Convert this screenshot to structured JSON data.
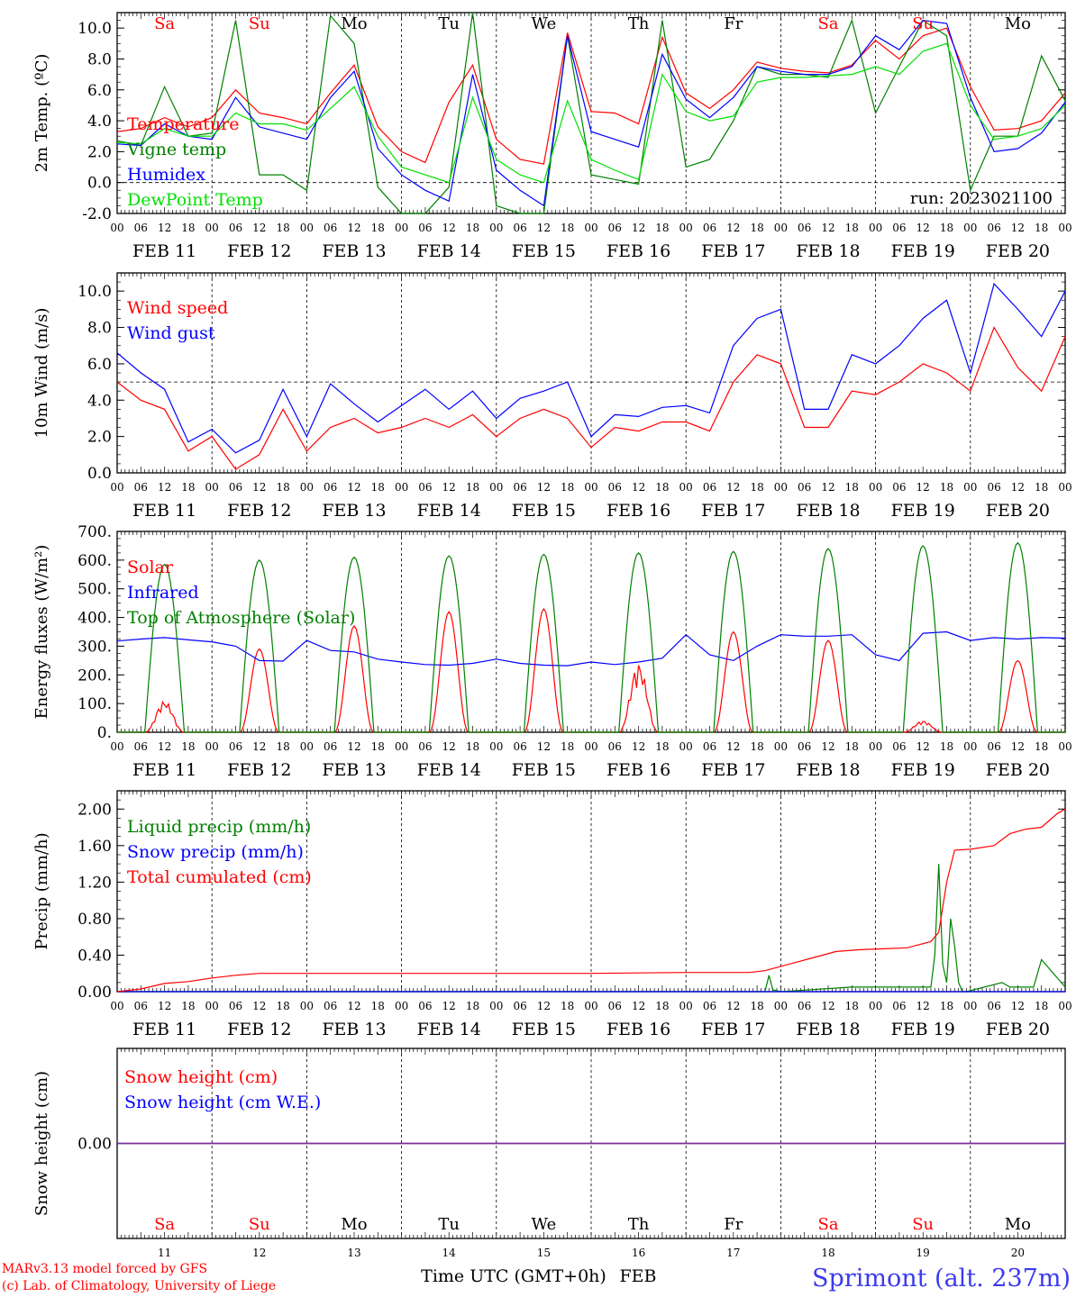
{
  "days": [
    "Sa",
    "Su",
    "Mo",
    "Tu",
    "We",
    "Th",
    "Fr",
    "Sa",
    "Su",
    "Mo"
  ],
  "day_colors": [
    "#ff0000",
    "#ff0000",
    "#000000",
    "#000000",
    "#000000",
    "#000000",
    "#000000",
    "#ff0000",
    "#ff0000",
    "#000000"
  ],
  "dates": [
    "FEB 11",
    "FEB 12",
    "FEB 13",
    "FEB 14",
    "FEB 15",
    "FEB 16",
    "FEB 17",
    "FEB 18",
    "FEB 19",
    "FEB 20"
  ],
  "hour_labels": [
    "00",
    "06",
    "12",
    "18"
  ],
  "bottom_day_numbers": [
    "11",
    "12",
    "13",
    "14",
    "15",
    "16",
    "17",
    "18",
    "19",
    "20"
  ],
  "run_label": "run: 2023021100",
  "xlabel": "Time UTC (GMT+0h)",
  "xlabel_month": "FEB",
  "station": "Sprimont (alt. 237m)",
  "credits": [
    "MARv3.13 model forced by GFS",
    "(c) Lab. of Climatology, University of Liege"
  ],
  "colors": {
    "red": "#ff0000",
    "green": "#008000",
    "blue": "#0000ff",
    "lightgreen": "#00e000",
    "purple": "#7b2fa0"
  },
  "chart_data": [
    {
      "id": "temp",
      "type": "line",
      "ylabel": "2m Temp. (ºC)",
      "ylim": [
        -2,
        11
      ],
      "yticks": [
        -2,
        0,
        2,
        4,
        6,
        8,
        10
      ],
      "yfmt": 1,
      "dashed_y": 0,
      "series": [
        {
          "name": "Temperature",
          "color": "#ff0000",
          "x": [
            0,
            6,
            12,
            18,
            24,
            30,
            36,
            42,
            48,
            54,
            60,
            66,
            72,
            78,
            84,
            90,
            96,
            102,
            108,
            114,
            120,
            126,
            132,
            138,
            144,
            150,
            156,
            162,
            168,
            174,
            180,
            186,
            192,
            198,
            204,
            210,
            216,
            222,
            228,
            234,
            240
          ],
          "y": [
            3.3,
            3.5,
            4.2,
            3.6,
            4.2,
            6.0,
            4.5,
            4.2,
            3.8,
            5.8,
            7.6,
            3.6,
            2.0,
            1.3,
            5.2,
            7.6,
            2.8,
            1.5,
            1.2,
            9.7,
            4.6,
            4.5,
            3.8,
            9.4,
            5.8,
            4.8,
            6.0,
            7.8,
            7.4,
            7.2,
            7.1,
            7.6,
            9.2,
            8.0,
            9.5,
            10.0,
            6.2,
            3.4,
            3.5,
            4.0,
            5.8
          ]
        },
        {
          "name": "Vigne temp",
          "color": "#008000",
          "x": [
            0,
            6,
            12,
            18,
            24,
            30,
            36,
            42,
            48,
            54,
            60,
            66,
            72,
            78,
            84,
            90,
            96,
            102,
            108,
            114,
            120,
            126,
            132,
            138,
            144,
            150,
            156,
            162,
            168,
            174,
            180,
            186,
            192,
            198,
            204,
            210,
            216,
            222,
            228,
            234,
            240
          ],
          "y": [
            2.7,
            2.4,
            6.2,
            3.0,
            3.2,
            10.5,
            0.5,
            0.5,
            -0.5,
            10.8,
            9.0,
            -0.3,
            -2.0,
            -2.0,
            -0.3,
            11.0,
            -1.5,
            -2.0,
            -2.0,
            9.5,
            0.5,
            0.2,
            -0.1,
            10.5,
            1.0,
            1.5,
            4.0,
            7.5,
            7.0,
            7.0,
            6.8,
            10.5,
            4.5,
            7.5,
            10.5,
            9.5,
            -0.5,
            3.0,
            3.0,
            8.2,
            5.3
          ]
        },
        {
          "name": "Humidex",
          "color": "#0000ff",
          "x": [
            0,
            6,
            12,
            18,
            24,
            30,
            36,
            42,
            48,
            54,
            60,
            66,
            72,
            78,
            84,
            90,
            96,
            102,
            108,
            114,
            120,
            126,
            132,
            138,
            144,
            150,
            156,
            162,
            168,
            174,
            180,
            186,
            192,
            198,
            204,
            210,
            216,
            222,
            228,
            234,
            240
          ],
          "y": [
            2.5,
            2.4,
            3.8,
            3.0,
            2.8,
            5.5,
            3.6,
            3.2,
            2.8,
            5.5,
            7.2,
            2.2,
            0.5,
            -0.5,
            -1.2,
            7.0,
            0.8,
            -0.5,
            -1.5,
            9.5,
            3.3,
            2.8,
            2.3,
            8.3,
            5.4,
            4.2,
            5.5,
            7.5,
            7.2,
            7.0,
            7.0,
            7.5,
            9.5,
            8.6,
            10.5,
            10.3,
            5.5,
            2.0,
            2.2,
            3.2,
            5.2
          ]
        },
        {
          "name": "DewPoint Temp",
          "color": "#00e000",
          "x": [
            0,
            6,
            12,
            18,
            24,
            30,
            36,
            42,
            48,
            54,
            60,
            66,
            72,
            78,
            84,
            90,
            96,
            102,
            108,
            114,
            120,
            126,
            132,
            138,
            144,
            150,
            156,
            162,
            168,
            174,
            180,
            186,
            192,
            198,
            204,
            210,
            216,
            222,
            228,
            234,
            240
          ],
          "y": [
            2.6,
            2.5,
            3.5,
            3.0,
            3.0,
            4.5,
            3.8,
            3.8,
            3.4,
            4.8,
            6.2,
            3.0,
            1.0,
            0.5,
            0.0,
            5.5,
            1.5,
            0.5,
            0.0,
            5.3,
            1.5,
            0.8,
            0.2,
            7.0,
            4.6,
            4.0,
            4.3,
            6.5,
            6.8,
            6.8,
            6.9,
            7.0,
            7.5,
            7.0,
            8.5,
            9.0,
            5.0,
            2.8,
            3.0,
            3.5,
            5.0
          ]
        }
      ]
    },
    {
      "id": "wind",
      "type": "line",
      "ylabel": "10m Wind (m/s)",
      "ylim": [
        0,
        11
      ],
      "yticks": [
        0,
        2,
        4,
        6,
        8,
        10
      ],
      "yfmt": 1,
      "dashed_y": 5,
      "series": [
        {
          "name": "Wind speed",
          "color": "#ff0000",
          "x": [
            0,
            6,
            12,
            18,
            24,
            30,
            36,
            42,
            48,
            54,
            60,
            66,
            72,
            78,
            84,
            90,
            96,
            102,
            108,
            114,
            120,
            126,
            132,
            138,
            144,
            150,
            156,
            162,
            168,
            174,
            180,
            186,
            192,
            198,
            204,
            210,
            216,
            222,
            228,
            234,
            240
          ],
          "y": [
            5.0,
            4.0,
            3.5,
            1.2,
            2.0,
            0.2,
            1.0,
            3.5,
            1.2,
            2.5,
            3.0,
            2.2,
            2.5,
            3.0,
            2.5,
            3.2,
            2.0,
            3.0,
            3.5,
            3.0,
            1.4,
            2.5,
            2.3,
            2.8,
            2.8,
            2.3,
            5.0,
            6.5,
            6.0,
            2.5,
            2.5,
            4.5,
            4.3,
            5.0,
            6.0,
            5.5,
            4.5,
            8.0,
            5.8,
            4.5,
            7.5
          ]
        },
        {
          "name": "Wind gust",
          "color": "#0000ff",
          "x": [
            0,
            6,
            12,
            18,
            24,
            30,
            36,
            42,
            48,
            54,
            60,
            66,
            72,
            78,
            84,
            90,
            96,
            102,
            108,
            114,
            120,
            126,
            132,
            138,
            144,
            150,
            156,
            162,
            168,
            174,
            180,
            186,
            192,
            198,
            204,
            210,
            216,
            222,
            228,
            234,
            240
          ],
          "y": [
            6.6,
            5.5,
            4.6,
            1.7,
            2.4,
            1.1,
            1.8,
            4.6,
            2.0,
            4.9,
            3.8,
            2.8,
            3.7,
            4.6,
            3.5,
            4.5,
            3.0,
            4.1,
            4.5,
            5.0,
            2.0,
            3.2,
            3.1,
            3.6,
            3.7,
            3.3,
            7.0,
            8.5,
            9.0,
            3.5,
            3.5,
            6.5,
            6.0,
            7.0,
            8.5,
            9.5,
            5.5,
            10.4,
            9.0,
            7.5,
            10.0
          ]
        }
      ]
    },
    {
      "id": "energy",
      "type": "line",
      "ylabel": "Energy fluxes (W/m²)",
      "ylim": [
        0,
        700
      ],
      "yticks": [
        0,
        100,
        200,
        300,
        400,
        500,
        600,
        700
      ],
      "yfmt": "dot",
      "dashed_y": null,
      "toa_peaks": [
        585,
        600,
        610,
        615,
        620,
        625,
        630,
        640,
        650,
        660
      ],
      "solar_peaks": [
        110,
        290,
        370,
        420,
        430,
        240,
        350,
        320,
        40,
        250
      ],
      "series": [
        {
          "name": "Solar",
          "color": "#ff0000",
          "x": [],
          "y": []
        },
        {
          "name": "Infrared",
          "color": "#0000ff",
          "x": [
            0,
            6,
            12,
            18,
            24,
            30,
            36,
            42,
            48,
            54,
            60,
            66,
            72,
            78,
            84,
            90,
            96,
            102,
            108,
            114,
            120,
            126,
            132,
            138,
            144,
            150,
            156,
            162,
            168,
            174,
            180,
            186,
            192,
            198,
            204,
            210,
            216,
            222,
            228,
            234,
            240
          ],
          "y": [
            318,
            325,
            330,
            322,
            315,
            300,
            250,
            248,
            320,
            285,
            280,
            255,
            245,
            236,
            234,
            240,
            255,
            240,
            234,
            232,
            245,
            236,
            245,
            258,
            340,
            270,
            250,
            300,
            340,
            335,
            335,
            340,
            270,
            250,
            345,
            350,
            320,
            330,
            325,
            330,
            328
          ]
        },
        {
          "name": "Top of Atmosphere (Solar)",
          "color": "#008000",
          "x": [],
          "y": []
        }
      ]
    },
    {
      "id": "precip",
      "type": "line",
      "ylabel": "Precip (mm/h)",
      "ylim": [
        0,
        2.2
      ],
      "yticks": [
        0,
        0.4,
        0.8,
        1.2,
        1.6,
        2.0
      ],
      "yfmt": 2,
      "dashed_y": null,
      "series": [
        {
          "name": "Liquid precip (mm/h)",
          "color": "#008000",
          "x": [
            0,
            164,
            165,
            166,
            168,
            186,
            206,
            207,
            208,
            209,
            210,
            211,
            212,
            213,
            214,
            215,
            224,
            226,
            232,
            234,
            240
          ],
          "y": [
            0,
            0,
            0.18,
            0.02,
            0,
            0.05,
            0.05,
            0.4,
            1.4,
            0.3,
            0.1,
            0.8,
            0.5,
            0.1,
            0,
            0,
            0.1,
            0.05,
            0.05,
            0.35,
            0.05
          ]
        },
        {
          "name": "Snow precip (mm/h)",
          "color": "#0000ff",
          "x": [
            0,
            240
          ],
          "y": [
            0,
            0
          ]
        },
        {
          "name": "Total cumulated (cm)",
          "color": "#ff0000",
          "x": [
            0,
            6,
            12,
            18,
            24,
            30,
            36,
            48,
            72,
            96,
            120,
            144,
            160,
            164,
            170,
            176,
            182,
            188,
            194,
            200,
            206,
            208,
            210,
            212,
            216,
            222,
            226,
            230,
            234,
            238,
            240
          ],
          "y": [
            0,
            0.03,
            0.09,
            0.11,
            0.15,
            0.18,
            0.2,
            0.2,
            0.2,
            0.2,
            0.2,
            0.21,
            0.21,
            0.23,
            0.3,
            0.37,
            0.44,
            0.46,
            0.47,
            0.48,
            0.55,
            0.65,
            1.2,
            1.55,
            1.56,
            1.6,
            1.73,
            1.78,
            1.8,
            1.95,
            2.0
          ]
        }
      ]
    },
    {
      "id": "snow",
      "type": "line",
      "ylabel": "Snow height (cm)",
      "ylim": [
        -1,
        1
      ],
      "yticks": [
        0
      ],
      "yfmt": 2,
      "dashed_y": null,
      "series": [
        {
          "name": "Snow height (cm)",
          "color": "#ff0000",
          "x": [
            0,
            240
          ],
          "y": [
            0,
            0
          ]
        },
        {
          "name": "Snow height (cm W.E.)",
          "color": "#0000ff",
          "x": [
            0,
            240
          ],
          "y": [
            0,
            0
          ]
        }
      ]
    }
  ]
}
